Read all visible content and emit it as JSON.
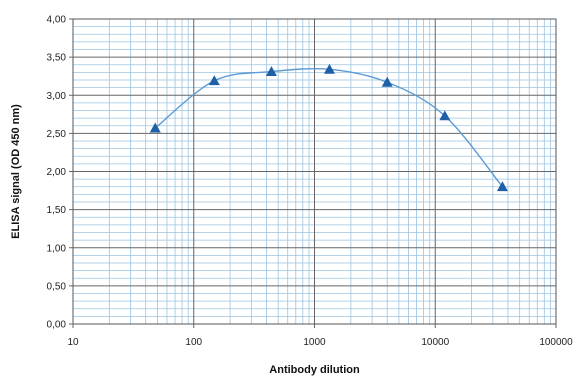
{
  "chart_data": {
    "type": "scatter",
    "title": "",
    "xlabel": "Antibody dilution",
    "ylabel": "ELISA signal (OD 450 nm)",
    "xscale": "log",
    "xlim": [
      10,
      100000
    ],
    "ylim": [
      0,
      4
    ],
    "grid": true,
    "legend": "none",
    "x_ticks": [
      "10",
      "100",
      "1000",
      "10000",
      "100000"
    ],
    "y_ticks": [
      "0,00",
      "0,50",
      "1,00",
      "1,50",
      "2,00",
      "2,50",
      "3,00",
      "3,50",
      "4,00"
    ],
    "series": [
      {
        "marker": "triangle",
        "color": "#1f5fa8",
        "line_color": "#5b9bd5",
        "points": [
          {
            "x": 48,
            "y": 2.57
          },
          {
            "x": 148,
            "y": 3.19
          },
          {
            "x": 440,
            "y": 3.31
          },
          {
            "x": 1330,
            "y": 3.34
          },
          {
            "x": 4000,
            "y": 3.17
          },
          {
            "x": 12000,
            "y": 2.73
          },
          {
            "x": 36000,
            "y": 1.8
          }
        ]
      }
    ]
  },
  "colors": {
    "plot_border": "#555555",
    "major_grid": "#666666",
    "minor_grid": "#9cc3e0"
  }
}
